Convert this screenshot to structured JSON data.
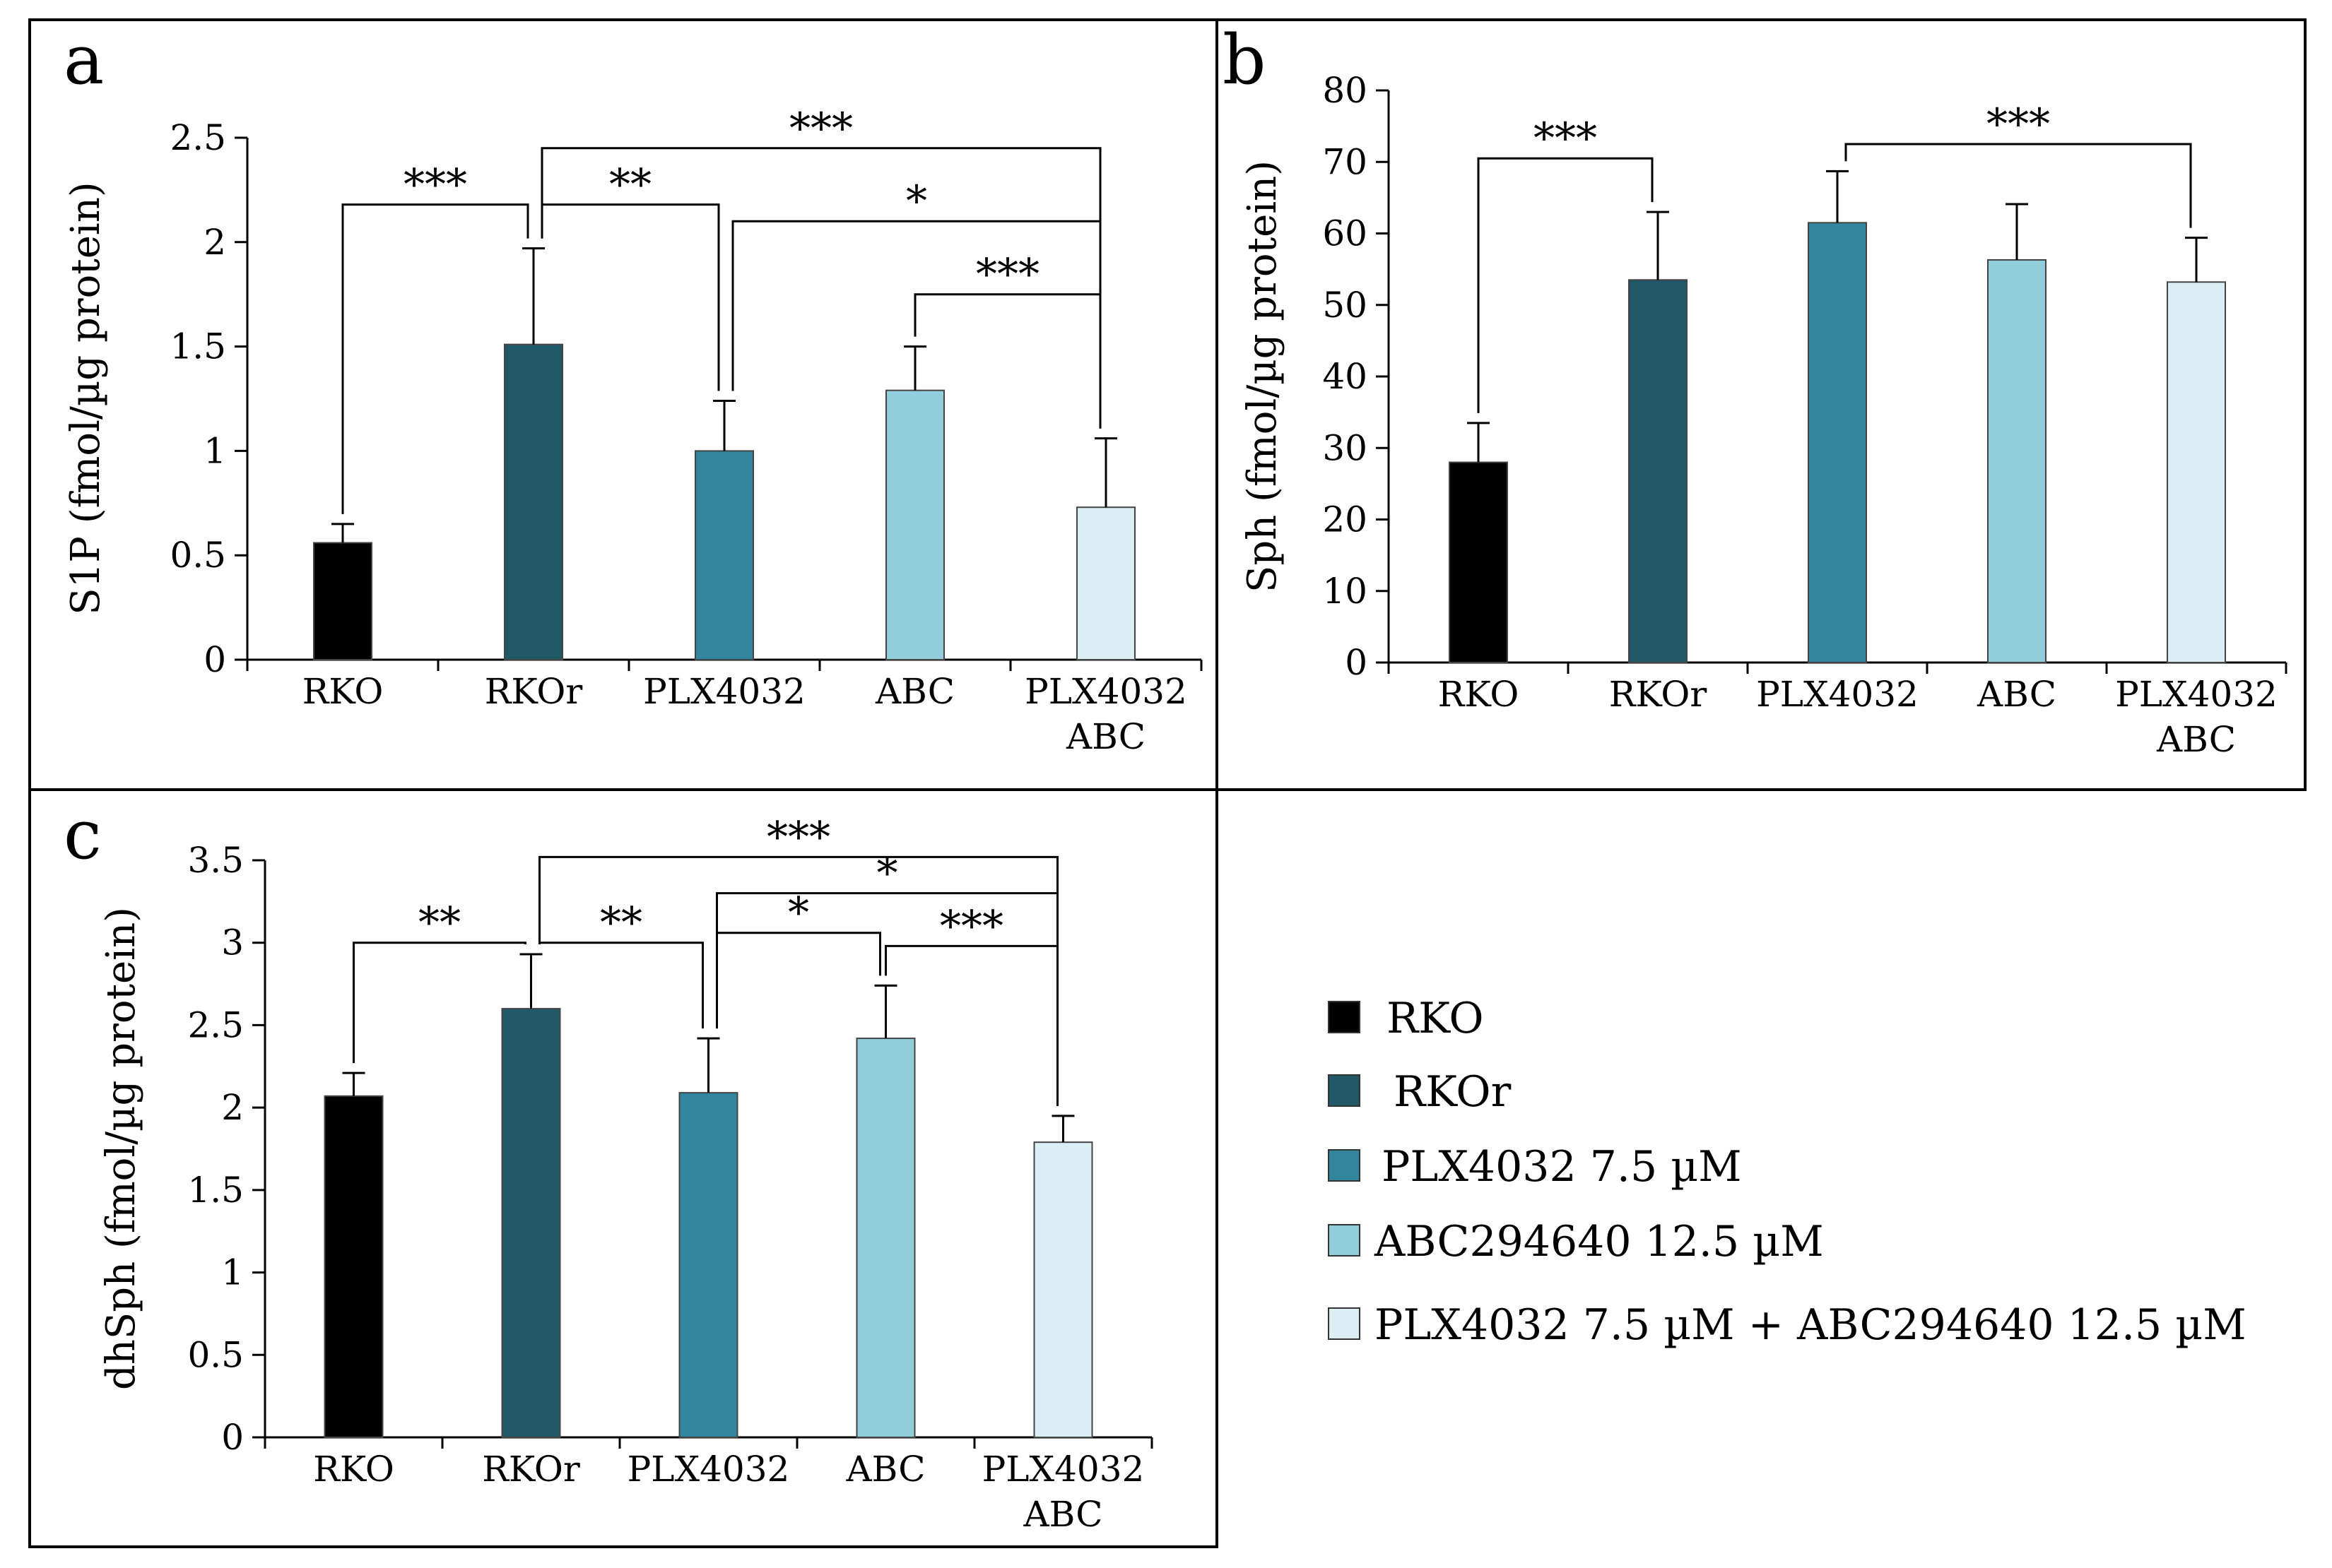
{
  "chart_data": [
    {
      "panel": "a",
      "type": "bar",
      "ylabel": "S1P (fmol/µg protein)",
      "ylim": [
        0,
        2.5
      ],
      "yticks": [
        0,
        0.5,
        1,
        1.5,
        2,
        2.5
      ],
      "ytick_labels": [
        "0",
        "0.5",
        "1",
        "1.5",
        "2",
        "2.5"
      ],
      "categories": [
        "RKO",
        "RKOr",
        "PLX4032",
        "ABC",
        "PLX4032 ABC"
      ],
      "category_lines": [
        [
          "RKO"
        ],
        [
          "RKOr"
        ],
        [
          "PLX4032"
        ],
        [
          "ABC"
        ],
        [
          "PLX4032",
          "ABC"
        ]
      ],
      "values": [
        0.56,
        1.51,
        1.0,
        1.29,
        0.73
      ],
      "errors": [
        0.09,
        0.46,
        0.24,
        0.21,
        0.33
      ],
      "colors": [
        "#000000",
        "#215867",
        "#31859c",
        "#92cddc",
        "#daeef3"
      ],
      "significance": [
        {
          "from": 0,
          "to": 1,
          "label": "***",
          "top": 2.18
        },
        {
          "from": 1,
          "to": 2,
          "label": "**",
          "top": 2.18
        },
        {
          "from": 1,
          "to": 4,
          "label": "***",
          "top": 2.45
        },
        {
          "from": 2,
          "to": 4,
          "label": "*",
          "top": 2.1
        },
        {
          "from": 3,
          "to": 4,
          "label": "***",
          "top": 1.75
        }
      ]
    },
    {
      "panel": "b",
      "type": "bar",
      "ylabel": "Sph (fmol/µg protein)",
      "ylim": [
        0,
        80
      ],
      "yticks": [
        0,
        10,
        20,
        30,
        40,
        50,
        60,
        70,
        80
      ],
      "ytick_labels": [
        "0",
        "10",
        "20",
        "30",
        "40",
        "50",
        "60",
        "70",
        "80"
      ],
      "categories": [
        "RKO",
        "RKOr",
        "PLX4032",
        "ABC",
        "PLX4032 ABC"
      ],
      "category_lines": [
        [
          "RKO"
        ],
        [
          "RKOr"
        ],
        [
          "PLX4032"
        ],
        [
          "ABC"
        ],
        [
          "PLX4032",
          "ABC"
        ]
      ],
      "values": [
        28,
        53.5,
        61.5,
        56.3,
        53.2
      ],
      "errors": [
        5.5,
        9.5,
        7.2,
        7.8,
        6.2
      ],
      "colors": [
        "#000000",
        "#215867",
        "#31859c",
        "#92cddc",
        "#daeef3"
      ],
      "significance": [
        {
          "from": 0,
          "to": 1,
          "label": "***",
          "top": 70.5
        },
        {
          "from": 2,
          "to": 4,
          "label": "***",
          "top": 72.5
        }
      ]
    },
    {
      "panel": "c",
      "type": "bar",
      "ylabel": "dhSph (fmol/µg protein)",
      "ylim": [
        0,
        3.5
      ],
      "yticks": [
        0,
        0.5,
        1,
        1.5,
        2,
        2.5,
        3,
        3.5
      ],
      "ytick_labels": [
        "0",
        "0.5",
        "1",
        "1.5",
        "2",
        "2.5",
        "3",
        "3.5"
      ],
      "categories": [
        "RKO",
        "RKOr",
        "PLX4032",
        "ABC",
        "PLX4032 ABC"
      ],
      "category_lines": [
        [
          "RKO"
        ],
        [
          "RKOr"
        ],
        [
          "PLX4032"
        ],
        [
          "ABC"
        ],
        [
          "PLX4032",
          "ABC"
        ]
      ],
      "values": [
        2.07,
        2.6,
        2.09,
        2.42,
        1.79
      ],
      "errors": [
        0.14,
        0.33,
        0.33,
        0.32,
        0.16
      ],
      "colors": [
        "#000000",
        "#215867",
        "#31859c",
        "#92cddc",
        "#daeef3"
      ],
      "significance": [
        {
          "from": 0,
          "to": 1,
          "label": "**",
          "top": 3.0
        },
        {
          "from": 1,
          "to": 2,
          "label": "**",
          "top": 3.0
        },
        {
          "from": 1,
          "to": 4,
          "label": "***",
          "top": 3.52
        },
        {
          "from": 2,
          "to": 4,
          "label": "*",
          "top": 3.3
        },
        {
          "from": 2,
          "to": 3,
          "label": "*",
          "top": 3.06
        },
        {
          "from": 3,
          "to": 4,
          "label": "***",
          "top": 2.98
        }
      ]
    }
  ],
  "legend": {
    "items": [
      {
        "label": "RKO",
        "color": "#000000"
      },
      {
        "label": "RKOr",
        "color": "#215867"
      },
      {
        "label": "PLX4032 7.5 µM",
        "color": "#31859c"
      },
      {
        "label": "ABC294640 12.5 µM",
        "color": "#92cddc"
      },
      {
        "label": "PLX4032 7.5 µM + ABC294640 12.5 µM",
        "color": "#daeef3"
      }
    ]
  }
}
